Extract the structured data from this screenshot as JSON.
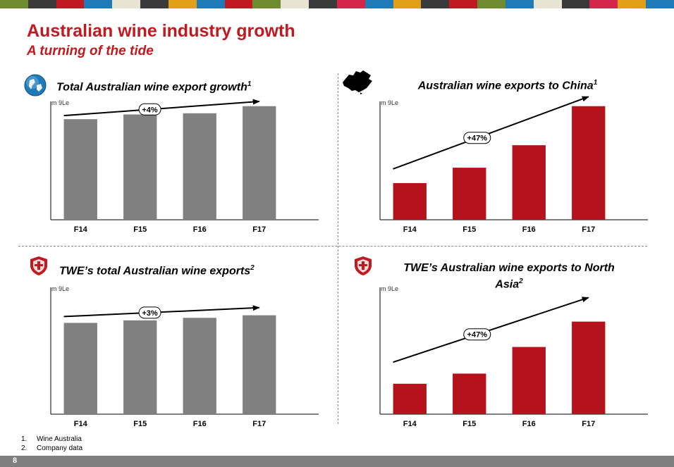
{
  "header": {
    "title": "Australian wine industry growth",
    "subtitle": "A turning of the tide",
    "stripe_colors": [
      "#6e8b2f",
      "#3a3a3a",
      "#c0191f",
      "#1f7ab8",
      "#e8e4d4",
      "#3a3a3a",
      "#e2a017",
      "#1f7ab8",
      "#c0191f",
      "#6e8b2f",
      "#e8e4d4",
      "#3a3a3a",
      "#d4264a",
      "#1f7ab8",
      "#e2a017",
      "#3a3a3a",
      "#c0191f",
      "#6e8b2f",
      "#1f7ab8",
      "#e8e4d4",
      "#3a3a3a",
      "#d4264a",
      "#e2a017",
      "#1f7ab8"
    ]
  },
  "panels": [
    {
      "title": "Total Australian wine export growth",
      "footnote_ref": "1",
      "icon": "globe-icon",
      "unit": "m 9Le"
    },
    {
      "title": "Australian wine exports to China",
      "footnote_ref": "1",
      "icon": "china-map-icon",
      "unit": "m 9Le"
    },
    {
      "title": "TWE’s total Australian wine exports",
      "footnote_ref": "2",
      "icon": "twe-crest-icon",
      "unit": "m 9Le"
    },
    {
      "title": "TWE’s Australian wine exports to North Asia",
      "footnote_ref": "2",
      "icon": "twe-crest-icon",
      "unit": "m 9Le"
    }
  ],
  "chart_data": [
    {
      "type": "bar",
      "categories": [
        "F14",
        "F15",
        "F16",
        "F17"
      ],
      "values": [
        0.85,
        0.89,
        0.9,
        0.96
      ],
      "ylim": [
        0,
        1
      ],
      "color": "#808080",
      "trend_label": "+4%",
      "trend": {
        "start": 0.88,
        "end": 1.0,
        "label_at": 0.44
      }
    },
    {
      "type": "bar",
      "categories": [
        "F14",
        "F15",
        "F16",
        "F17"
      ],
      "values": [
        0.31,
        0.44,
        0.63,
        0.96
      ],
      "ylim": [
        0,
        1
      ],
      "color": "#b5121b",
      "trend_label": "+47%",
      "trend": {
        "start": 0.43,
        "end": 1.04,
        "label_at": 0.43
      }
    },
    {
      "type": "bar",
      "categories": [
        "F14",
        "F15",
        "F16",
        "F17"
      ],
      "values": [
        0.72,
        0.74,
        0.76,
        0.78
      ],
      "ylim": [
        0,
        1
      ],
      "color": "#808080",
      "trend_label": "+3%",
      "trend": {
        "start": 0.77,
        "end": 0.84,
        "label_at": 0.44
      }
    },
    {
      "type": "bar",
      "categories": [
        "F14",
        "F15",
        "F16",
        "F17"
      ],
      "values": [
        0.24,
        0.32,
        0.53,
        0.73
      ],
      "ylim": [
        0,
        1
      ],
      "color": "#b5121b",
      "trend_label": "+47%",
      "trend": {
        "start": 0.41,
        "end": 0.92,
        "label_at": 0.43
      }
    }
  ],
  "footnotes": [
    {
      "num": "1.",
      "text": "Wine Australia"
    },
    {
      "num": "2.",
      "text": "Company data"
    }
  ],
  "page_number": "8"
}
